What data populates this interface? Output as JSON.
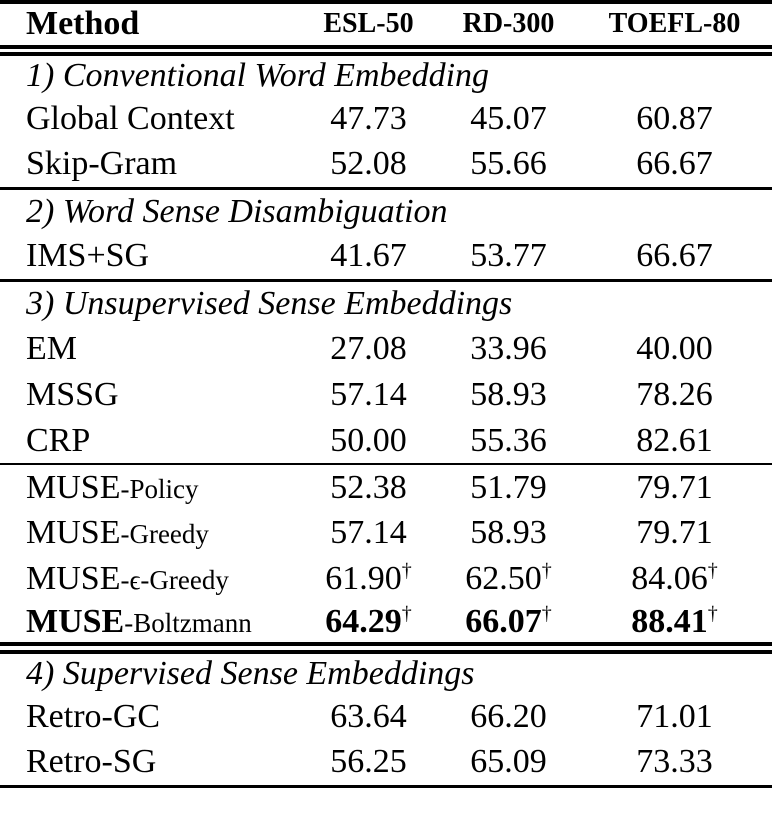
{
  "table": {
    "columns": [
      "Method",
      "ESL-50",
      "RD-300",
      "TOEFL-80"
    ],
    "sections": [
      {
        "heading": "1) Conventional Word Embedding",
        "rows": [
          {
            "method": "Global Context",
            "scores": [
              "47.73",
              "45.07",
              "60.87"
            ]
          },
          {
            "method": "Skip-Gram",
            "scores": [
              "52.08",
              "55.66",
              "66.67"
            ]
          }
        ]
      },
      {
        "heading": "2) Word Sense Disambiguation",
        "rows": [
          {
            "method": "IMS+SG",
            "scores": [
              "41.67",
              "53.77",
              "66.67"
            ]
          }
        ]
      },
      {
        "heading": "3) Unsupervised Sense Embeddings",
        "rows": [
          {
            "method": "EM",
            "scores": [
              "27.08",
              "33.96",
              "40.00"
            ]
          },
          {
            "method": "MSSG",
            "scores": [
              "57.14",
              "58.93",
              "78.26"
            ]
          },
          {
            "method": "CRP",
            "scores": [
              "50.00",
              "55.36",
              "82.61"
            ]
          },
          {
            "method": "MUSE",
            "suffix": "-Policy",
            "scores": [
              "52.38",
              "51.79",
              "79.71"
            ]
          },
          {
            "method": "MUSE",
            "suffix": "-Greedy",
            "scores": [
              "57.14",
              "58.93",
              "79.71"
            ]
          },
          {
            "method": "MUSE",
            "suffix": "-ϵ-Greedy",
            "scores": [
              "61.90",
              "62.50",
              "84.06"
            ],
            "sup": "†"
          },
          {
            "method": "MUSE",
            "suffix": "-Boltzmann",
            "scores": [
              "64.29",
              "66.07",
              "88.41"
            ],
            "sup": "†",
            "bold": true
          }
        ]
      },
      {
        "heading": "4) Supervised Sense Embeddings",
        "rows": [
          {
            "method": "Retro-GC",
            "scores": [
              "63.64",
              "66.20",
              "71.01"
            ]
          },
          {
            "method": "Retro-SG",
            "scores": [
              "56.25",
              "65.09",
              "73.33"
            ]
          }
        ]
      }
    ]
  },
  "colors": {
    "background": "#ffffff",
    "text": "#000000",
    "rule": "#000000"
  }
}
